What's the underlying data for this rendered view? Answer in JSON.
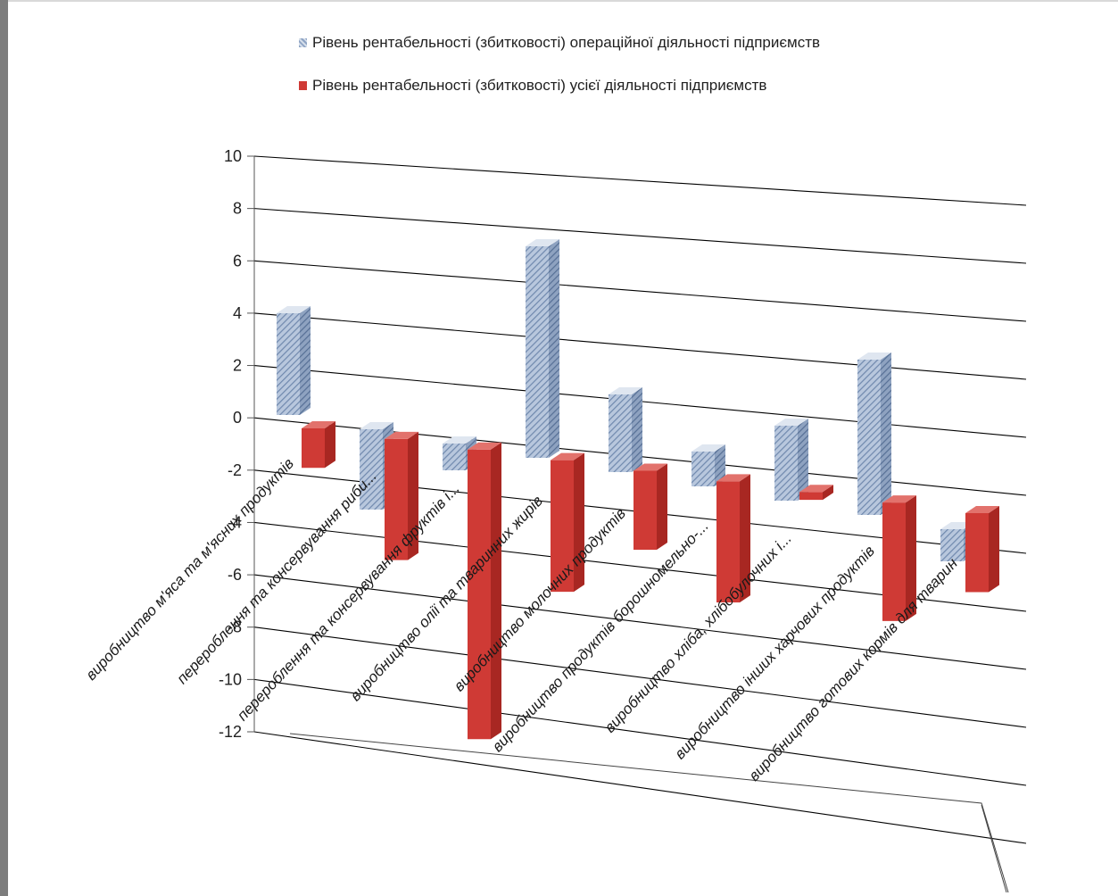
{
  "chart_data": {
    "type": "bar",
    "subtype": "3d-column-clustered",
    "title": "",
    "xlabel": "",
    "ylabel": "",
    "ylim": [
      -12,
      10
    ],
    "yticks": [
      "10",
      "8",
      "6",
      "4",
      "2",
      "0",
      "-2",
      "-4",
      "-6",
      "-8",
      "-10",
      "-12"
    ],
    "grid": true,
    "legend_position": "top",
    "categories": [
      "виробництво м'яса та м'ясних продуктів",
      "перероблення та консервування риби...",
      "перероблення та консервування фруктів і...",
      "виробництво олії та тваринних жирів",
      "виробництво молочних продуктів",
      "виробництво продуктів борошномельно-...",
      "виробництво хліба, хлібобулочних і...",
      "виробництво інших харчових продуктів",
      "виробництво готових кормів для тварин"
    ],
    "series": [
      {
        "name": "Рівень рентабельності (збитковості) операційної діяльності підприємств",
        "color": "#8ea4c4",
        "values": [
          3.8,
          -3.0,
          -1.0,
          7.9,
          2.9,
          1.3,
          2.8,
          5.8,
          -1.2
        ]
      },
      {
        "name": "Рівень рентабельності (збитковості) усієї діяльності підприємств",
        "color": "#cf3a35",
        "values": [
          -1.5,
          -4.6,
          -11.0,
          -5.0,
          -3.0,
          -4.6,
          -0.3,
          -4.5,
          -3.0
        ]
      }
    ]
  }
}
